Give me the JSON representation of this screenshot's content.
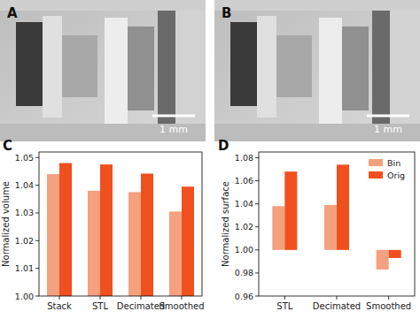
{
  "images": [
    {
      "label": "A",
      "scale_bar": "1 mm"
    },
    {
      "label": "B",
      "scale_bar": "1 mm"
    }
  ],
  "chart_data": [
    {
      "type": "bar",
      "panel": "C",
      "y_label": "Normalized volume",
      "categories": [
        "Stack",
        "STL",
        "Decimated",
        "Smoothed"
      ],
      "series": [
        {
          "name": "Bin",
          "color": "#f5a07f",
          "values": [
            1.044,
            1.038,
            1.0375,
            1.0305
          ]
        },
        {
          "name": "Orig",
          "color": "#f0501e",
          "values": [
            1.048,
            1.0475,
            1.0442,
            1.0395
          ]
        }
      ],
      "ylim": [
        1.0,
        1.052
      ],
      "yticks": [
        {
          "value": 1.0,
          "label": "1.00"
        },
        1.01,
        1.02,
        1.03,
        1.04,
        1.05
      ]
    },
    {
      "type": "bar",
      "panel": "D",
      "y_label": "Normalized surface",
      "categories": [
        "STL",
        "Decimated",
        "Smoothed"
      ],
      "series": [
        {
          "name": "Bin",
          "color": "#f5a07f",
          "values": [
            1.038,
            1.039,
            0.983
          ]
        },
        {
          "name": "Orig",
          "color": "#f0501e",
          "values": [
            1.068,
            1.074,
            0.993
          ]
        }
      ],
      "ylim": [
        0.96,
        1.085
      ],
      "yticks": [
        0.96,
        0.98,
        {
          "value": 1.0,
          "label": "1.00"
        },
        1.02,
        1.04,
        1.06,
        1.08
      ],
      "legend": "upper-right"
    }
  ]
}
